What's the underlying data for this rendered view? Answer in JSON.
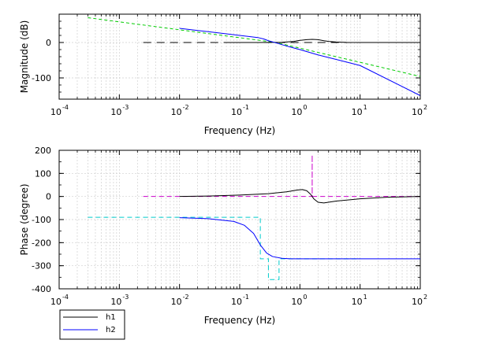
{
  "colors": {
    "h1": "#000000",
    "h2": "#0000ff",
    "asymptote_mag": "#00cc00",
    "asymptote_phase_h1": "#cc00cc",
    "asymptote_phase_h2": "#00cccc",
    "grid": "#cfcfcf"
  },
  "legend": {
    "entries": [
      {
        "name": "h1",
        "color": "#000000"
      },
      {
        "name": "h2",
        "color": "#0000ff"
      }
    ],
    "placement": "bottom-left"
  },
  "chart_data": [
    {
      "type": "line",
      "xscale": "log",
      "xlim": [
        0.0001,
        100
      ],
      "ylim": [
        -160,
        80
      ],
      "xlabel": "Frequency (Hz)",
      "ylabel": "Magnitude (dB)",
      "x_ticks": [
        {
          "base": "10",
          "exp": "-4",
          "value": 0.0001
        },
        {
          "base": "10",
          "exp": "-3",
          "value": 0.001
        },
        {
          "base": "10",
          "exp": "-2",
          "value": 0.01
        },
        {
          "base": "10",
          "exp": "-1",
          "value": 0.1
        },
        {
          "base": "10",
          "exp": "0",
          "value": 1
        },
        {
          "base": "10",
          "exp": "1",
          "value": 10
        },
        {
          "base": "10",
          "exp": "2",
          "value": 100
        }
      ],
      "y_ticks": [
        {
          "label": "0",
          "value": 0
        },
        {
          "label": "-100",
          "value": -100
        }
      ],
      "grid": true,
      "series": [
        {
          "name": "h2 asymptote",
          "color": "#00cc00",
          "dash": "4,3",
          "x": [
            0.0003,
            0.4,
            100
          ],
          "y": [
            70,
            0,
            -96
          ]
        },
        {
          "name": "h1 asymptote",
          "color": "#000000",
          "dash": "10,7",
          "x": [
            0.0025,
            100
          ],
          "y": [
            0,
            0
          ]
        },
        {
          "name": "h1",
          "color": "#000000",
          "dash": "",
          "x": [
            0.06,
            0.2,
            0.5,
            0.8,
            1.0,
            1.3,
            1.6,
            2.0,
            2.5,
            3.0,
            4.0,
            6.0,
            10,
            100
          ],
          "y": [
            0,
            0,
            0.5,
            3,
            6,
            8,
            9,
            8,
            5,
            3,
            1.5,
            0.3,
            0,
            0
          ]
        },
        {
          "name": "h2",
          "color": "#0000ff",
          "dash": "",
          "x": [
            0.01,
            0.03,
            0.1,
            0.2,
            0.25,
            0.3,
            0.4,
            0.5,
            0.7,
            1,
            2,
            5,
            10,
            100
          ],
          "y": [
            40,
            30.5,
            20,
            14,
            10,
            5,
            -1,
            -6,
            -13,
            -20,
            -35,
            -52,
            -65,
            -150
          ]
        }
      ]
    },
    {
      "type": "line",
      "xscale": "log",
      "xlim": [
        0.0001,
        100
      ],
      "ylim": [
        -400,
        200
      ],
      "xlabel": "Frequency (Hz)",
      "ylabel": "Phase (degree)",
      "x_ticks": [
        {
          "base": "10",
          "exp": "-4",
          "value": 0.0001
        },
        {
          "base": "10",
          "exp": "-3",
          "value": 0.001
        },
        {
          "base": "10",
          "exp": "-2",
          "value": 0.01
        },
        {
          "base": "10",
          "exp": "-1",
          "value": 0.1
        },
        {
          "base": "10",
          "exp": "0",
          "value": 1
        },
        {
          "base": "10",
          "exp": "1",
          "value": 10
        },
        {
          "base": "10",
          "exp": "2",
          "value": 100
        }
      ],
      "y_ticks": [
        {
          "label": "200",
          "value": 200
        },
        {
          "label": "100",
          "value": 100
        },
        {
          "label": "0",
          "value": 0
        },
        {
          "label": "-100",
          "value": -100
        },
        {
          "label": "-200",
          "value": -200
        },
        {
          "label": "-300",
          "value": -300
        },
        {
          "label": "-400",
          "value": -400
        }
      ],
      "grid": true,
      "series": [
        {
          "name": "h1 phase asymptote",
          "color": "#cc00cc",
          "dash": "6,4",
          "x": [
            0.0025,
            1.6,
            1.6,
            1.6,
            100
          ],
          "y": [
            0,
            0,
            180,
            0,
            0
          ]
        },
        {
          "name": "h2 phase asymptote",
          "color": "#00cccc",
          "dash": "6,4",
          "x": [
            0.0003,
            0.22,
            0.22,
            0.3,
            0.3,
            0.45,
            0.45,
            10
          ],
          "y": [
            -90,
            -90,
            -270,
            -270,
            -360,
            -360,
            -270,
            -270
          ]
        },
        {
          "name": "h1",
          "color": "#000000",
          "dash": "",
          "x": [
            0.01,
            0.03,
            0.1,
            0.3,
            0.6,
            0.9,
            1.1,
            1.3,
            1.5,
            1.7,
            2.0,
            2.5,
            4,
            10,
            30,
            100
          ],
          "y": [
            0,
            2,
            6,
            12,
            20,
            28,
            30,
            25,
            10,
            -10,
            -25,
            -28,
            -20,
            -10,
            -3,
            0
          ]
        },
        {
          "name": "h2",
          "color": "#0000ff",
          "dash": "",
          "x": [
            0.01,
            0.03,
            0.08,
            0.12,
            0.17,
            0.22,
            0.28,
            0.35,
            0.5,
            0.7,
            1,
            3,
            10,
            100
          ],
          "y": [
            -92,
            -96,
            -108,
            -125,
            -160,
            -210,
            -245,
            -260,
            -268,
            -270,
            -270,
            -270,
            -270,
            -270
          ]
        }
      ]
    }
  ]
}
